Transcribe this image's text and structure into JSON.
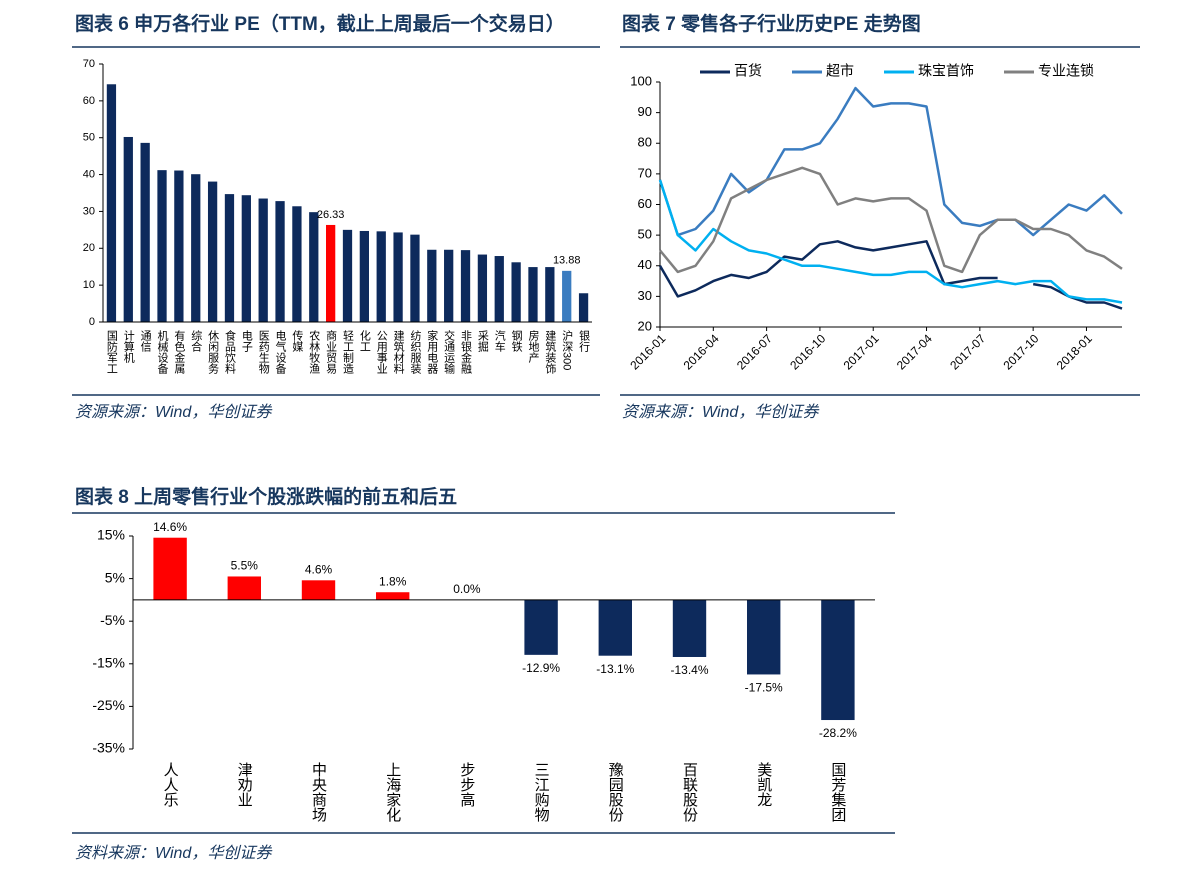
{
  "chart_data": [
    {
      "type": "bar",
      "title": "图表 6 申万各行业 PE（TTM，截止上周最后一个交易日）",
      "source": "资源来源：Wind，华创证券",
      "categories": [
        "国防军工",
        "计算机",
        "通信",
        "机械设备",
        "有色金属",
        "综合",
        "休闲服务",
        "食品饮料",
        "电子",
        "医药生物",
        "电气设备",
        "传媒",
        "农林牧渔",
        "商业贸易",
        "轻工制造",
        "化工",
        "公用事业",
        "建筑材料",
        "纺织服装",
        "家用电器",
        "交通运输",
        "非银金融",
        "采掘",
        "汽车",
        "钢铁",
        "房地产",
        "建筑装饰",
        "沪深300",
        "银行"
      ],
      "values": [
        64.5,
        50.2,
        48.6,
        41.2,
        41.1,
        40.1,
        38.1,
        34.7,
        34.4,
        33.5,
        32.8,
        31.4,
        29.8,
        26.33,
        25.0,
        24.7,
        24.6,
        24.3,
        23.7,
        19.6,
        19.6,
        19.5,
        18.3,
        17.9,
        16.2,
        14.9,
        14.9,
        13.88,
        7.8
      ],
      "value_labels": [
        null,
        null,
        null,
        null,
        null,
        null,
        null,
        null,
        null,
        null,
        null,
        null,
        null,
        "26.33",
        null,
        null,
        null,
        null,
        null,
        null,
        null,
        null,
        null,
        null,
        null,
        null,
        null,
        "13.88",
        null
      ],
      "colors": [
        "#0d2a5c",
        "#0d2a5c",
        "#0d2a5c",
        "#0d2a5c",
        "#0d2a5c",
        "#0d2a5c",
        "#0d2a5c",
        "#0d2a5c",
        "#0d2a5c",
        "#0d2a5c",
        "#0d2a5c",
        "#0d2a5c",
        "#0d2a5c",
        "#ff0000",
        "#0d2a5c",
        "#0d2a5c",
        "#0d2a5c",
        "#0d2a5c",
        "#0d2a5c",
        "#0d2a5c",
        "#0d2a5c",
        "#0d2a5c",
        "#0d2a5c",
        "#0d2a5c",
        "#0d2a5c",
        "#0d2a5c",
        "#0d2a5c",
        "#3a7cc0",
        "#0d2a5c"
      ],
      "ylim": [
        0,
        70
      ],
      "yticks": [
        0,
        10,
        20,
        30,
        40,
        50,
        60,
        70
      ],
      "grid": false
    },
    {
      "type": "line",
      "title": "图表 7 零售各子行业历史PE 走势图",
      "source": "资源来源：Wind，华创证券",
      "x": [
        "2016-01",
        "2016-02",
        "2016-03",
        "2016-04",
        "2016-05",
        "2016-06",
        "2016-07",
        "2016-08",
        "2016-09",
        "2016-10",
        "2016-11",
        "2016-12",
        "2017-01",
        "2017-02",
        "2017-03",
        "2017-04",
        "2017-05",
        "2017-06",
        "2017-07",
        "2017-08",
        "2017-09",
        "2017-10",
        "2017-11",
        "2017-12",
        "2018-01",
        "2018-02",
        "2018-03"
      ],
      "xticks": [
        "2016-01",
        "2016-04",
        "2016-07",
        "2016-10",
        "2017-01",
        "2017-04",
        "2017-07",
        "2017-10",
        "2018-01"
      ],
      "series": [
        {
          "name": "百货",
          "color": "#0d2a5c",
          "values": [
            40,
            30,
            32,
            35,
            37,
            36,
            38,
            43,
            42,
            47,
            48,
            46,
            45,
            46,
            47,
            48,
            34,
            35,
            36,
            36,
            null,
            34,
            33,
            30,
            28,
            28,
            26
          ]
        },
        {
          "name": "超市",
          "color": "#3a7cc0",
          "values": [
            68,
            50,
            52,
            58,
            70,
            64,
            68,
            78,
            78,
            80,
            88,
            98,
            92,
            93,
            93,
            92,
            60,
            54,
            53,
            55,
            55,
            50,
            55,
            60,
            58,
            63,
            57
          ]
        },
        {
          "name": "珠宝首饰",
          "color": "#00b0f0",
          "values": [
            68,
            50,
            45,
            52,
            48,
            45,
            44,
            42,
            40,
            40,
            39,
            38,
            37,
            37,
            38,
            38,
            34,
            33,
            34,
            35,
            34,
            35,
            35,
            30,
            29,
            29,
            28
          ]
        },
        {
          "name": "专业连锁",
          "color": "#808080",
          "values": [
            45,
            38,
            40,
            48,
            62,
            65,
            68,
            70,
            72,
            70,
            60,
            62,
            61,
            62,
            62,
            58,
            40,
            38,
            50,
            55,
            55,
            52,
            52,
            50,
            45,
            43,
            39
          ]
        }
      ],
      "ylim": [
        20,
        100
      ],
      "yticks": [
        20,
        30,
        40,
        50,
        60,
        70,
        80,
        90,
        100
      ],
      "legend": "top",
      "grid": false
    },
    {
      "type": "bar",
      "title": "图表 8 上周零售行业个股涨跌幅的前五和后五",
      "source": "资料来源：Wind，华创证券",
      "categories": [
        "人人乐",
        "津劝业",
        "中央商场",
        "上海家化",
        "步步高",
        "三江购物",
        "豫园股份",
        "百联股份",
        "美凯龙",
        "国芳集团"
      ],
      "values": [
        14.6,
        5.5,
        4.6,
        1.8,
        0.0,
        -12.9,
        -13.1,
        -13.4,
        -17.5,
        -28.2
      ],
      "value_labels": [
        "14.6%",
        "5.5%",
        "4.6%",
        "1.8%",
        "0.0%",
        "-12.9%",
        "-13.1%",
        "-13.4%",
        "-17.5%",
        "-28.2%"
      ],
      "colors": [
        "#ff0000",
        "#ff0000",
        "#ff0000",
        "#ff0000",
        "#ff0000",
        "#0d2a5c",
        "#0d2a5c",
        "#0d2a5c",
        "#0d2a5c",
        "#0d2a5c"
      ],
      "ylim": [
        -35,
        15
      ],
      "yticks": [
        {
          "value": 15,
          "label": "15%"
        },
        {
          "value": 5,
          "label": "5%"
        },
        {
          "value": -5,
          "label": "-5%"
        },
        {
          "value": -15,
          "label": "-15%"
        },
        {
          "value": -25,
          "label": "-25%"
        },
        {
          "value": -35,
          "label": "-35%"
        }
      ],
      "grid": false
    }
  ]
}
